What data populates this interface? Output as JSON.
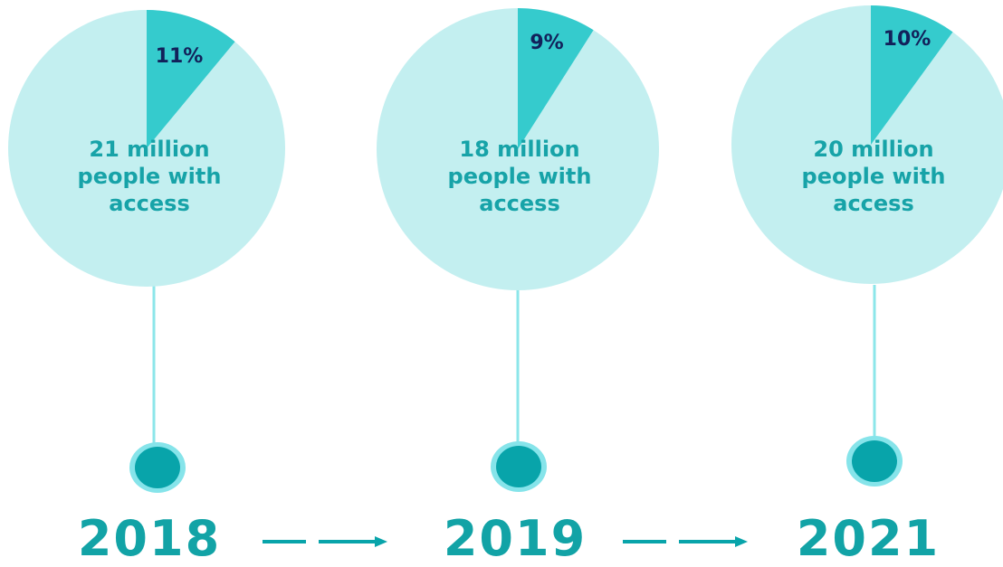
{
  "chart_data": {
    "type": "pie",
    "categories": [
      "2018",
      "2019",
      "2021"
    ],
    "charts": [
      {
        "year": "2018",
        "share_percent": 11,
        "share_label": "11%",
        "caption": "21 million people with access"
      },
      {
        "year": "2019",
        "share_percent": 9,
        "share_label": "9%",
        "caption": "18 million people with access"
      },
      {
        "year": "2021",
        "share_percent": 10,
        "share_label": "10%",
        "caption": "20 million people with access"
      }
    ],
    "colors": {
      "pie_background": "#c3eff0",
      "slice": "#35cbcd",
      "connector_line": "#8ce6ea",
      "node_fill": "#08a4aa",
      "node_ring": "#86e4ea",
      "arrow": "#08a4aa",
      "year_text": "#12a3a6",
      "caption_text": "#17a3a8",
      "percent_text": "#12215a"
    }
  }
}
